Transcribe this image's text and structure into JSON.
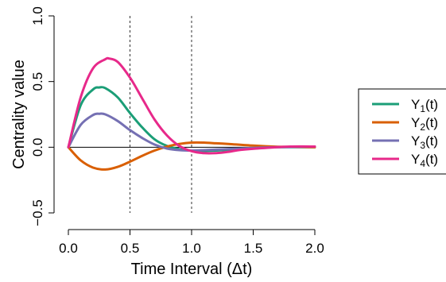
{
  "chart_data": {
    "type": "line",
    "title": "",
    "xlabel": "Time Interval (Δt)",
    "ylabel": "Centrality value",
    "xlim": [
      0,
      2
    ],
    "ylim": [
      -0.5,
      1.0
    ],
    "x_ticks": [
      "0.0",
      "0.5",
      "1.0",
      "1.5",
      "2.0"
    ],
    "y_ticks": [
      "−0.5",
      "0.0",
      "0.5",
      "1.0"
    ],
    "grid": false,
    "reference_lines": {
      "horizontal_y": 0,
      "vertical_dashed_x": [
        0.5,
        1.0
      ]
    },
    "legend_position": "right",
    "series": [
      {
        "name": "Y1(t)",
        "legend": {
          "base": "Y",
          "sub": "1",
          "suffix": "(t)"
        },
        "color": "#1b9e77",
        "x": [
          0,
          0.1,
          0.2,
          0.25,
          0.3,
          0.4,
          0.5,
          0.6,
          0.7,
          0.8,
          0.9,
          1.0,
          1.1,
          1.2,
          1.3,
          1.5,
          1.7,
          2.0
        ],
        "y": [
          0,
          0.32,
          0.44,
          0.455,
          0.45,
          0.38,
          0.26,
          0.15,
          0.06,
          0.01,
          -0.015,
          -0.025,
          -0.028,
          -0.025,
          -0.02,
          -0.01,
          0.0,
          0.0
        ]
      },
      {
        "name": "Y2(t)",
        "legend": {
          "base": "Y",
          "sub": "2",
          "suffix": "(t)"
        },
        "color": "#d95f02",
        "x": [
          0,
          0.1,
          0.2,
          0.3,
          0.4,
          0.5,
          0.6,
          0.7,
          0.8,
          0.9,
          1.0,
          1.1,
          1.2,
          1.3,
          1.5,
          1.7,
          2.0
        ],
        "y": [
          0,
          -0.1,
          -0.155,
          -0.17,
          -0.15,
          -0.11,
          -0.065,
          -0.025,
          0.005,
          0.025,
          0.035,
          0.035,
          0.03,
          0.025,
          0.012,
          0.004,
          0.0
        ]
      },
      {
        "name": "Y3(t)",
        "legend": {
          "base": "Y",
          "sub": "3",
          "suffix": "(t)"
        },
        "color": "#7570b3",
        "x": [
          0,
          0.1,
          0.2,
          0.25,
          0.3,
          0.4,
          0.5,
          0.6,
          0.7,
          0.8,
          0.9,
          1.0,
          1.1,
          1.2,
          1.3,
          1.5,
          1.7,
          2.0
        ],
        "y": [
          0,
          0.17,
          0.245,
          0.255,
          0.25,
          0.2,
          0.13,
          0.07,
          0.02,
          -0.01,
          -0.022,
          -0.025,
          -0.022,
          -0.018,
          -0.014,
          -0.006,
          0.0,
          0.005
        ]
      },
      {
        "name": "Y4(t)",
        "legend": {
          "base": "Y",
          "sub": "4",
          "suffix": "(t)"
        },
        "color": "#e7298a",
        "x": [
          0,
          0.1,
          0.2,
          0.3,
          0.33,
          0.4,
          0.5,
          0.6,
          0.7,
          0.8,
          0.9,
          1.0,
          1.1,
          1.2,
          1.3,
          1.4,
          1.6,
          1.8,
          2.0
        ],
        "y": [
          0,
          0.38,
          0.6,
          0.67,
          0.675,
          0.65,
          0.53,
          0.37,
          0.21,
          0.09,
          0.01,
          -0.03,
          -0.045,
          -0.045,
          -0.035,
          -0.02,
          -0.005,
          0.005,
          0.005
        ]
      }
    ]
  }
}
